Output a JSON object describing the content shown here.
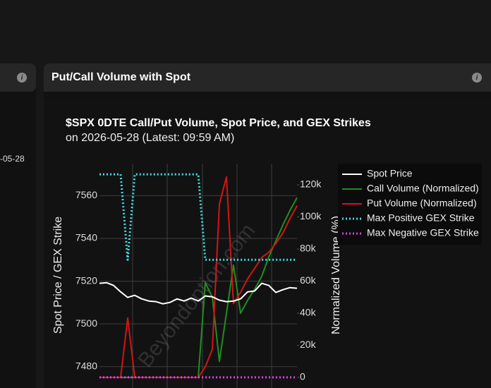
{
  "left_panel": {
    "date_fragment": "-05-28"
  },
  "panel": {
    "title": "Put/Call Volume with Spot"
  },
  "chart_data": {
    "type": "line",
    "title": "$SPX 0DTE Call/Put Volume, Spot Price, and GEX Strikes",
    "subtitle": "on 2026-05-28 (Latest: 09:59 AM)",
    "watermark": "Beyondoption.com",
    "y_label": "Spot Price / GEX Strike",
    "y2_label": "Normalized Volume (%)",
    "x": [
      0,
      1,
      2,
      3,
      4,
      5,
      6,
      7,
      8,
      9,
      10,
      11,
      12,
      13,
      14,
      15,
      16,
      17,
      18,
      19,
      20,
      21,
      22,
      23,
      24,
      25,
      26,
      27,
      28
    ],
    "xlim": [
      0,
      28
    ],
    "ylim": [
      7470,
      7575
    ],
    "yticks": [
      7480,
      7500,
      7520,
      7540,
      7560
    ],
    "y2lim": [
      -6600,
      133200
    ],
    "y2ticks": [
      {
        "value": 0,
        "label": "0"
      },
      {
        "value": 20000,
        "label": "20k"
      },
      {
        "value": 40000,
        "label": "40k"
      },
      {
        "value": 60000,
        "label": "60k"
      },
      {
        "value": 80000,
        "label": "80k"
      },
      {
        "value": 100000,
        "label": "100k"
      },
      {
        "value": 120000,
        "label": "120k"
      }
    ],
    "grid": true,
    "legend": "upper right",
    "series": [
      {
        "name": "Spot Price",
        "color": "#ffffff",
        "style": "solid",
        "values": [
          7519.0,
          7519.3,
          7518.0,
          7515.0,
          7512.4,
          7513.4,
          7511.7,
          7510.7,
          7510.4,
          7509.4,
          7510.1,
          7511.7,
          7510.7,
          7512.1,
          7510.7,
          7513.1,
          7512.7,
          7511.1,
          7510.4,
          7510.7,
          7511.7,
          7515.0,
          7515.4,
          7519.0,
          7518.0,
          7514.7,
          7516.0,
          7517.0,
          7516.7
        ]
      },
      {
        "name": "Call Volume (Normalized)",
        "color": "#1f8f1f",
        "style": "solid",
        "axis": "y2",
        "values": [
          0,
          0,
          0,
          0,
          0,
          0,
          0,
          0,
          0,
          0,
          0,
          0,
          0,
          0,
          0,
          59000,
          50000,
          10000,
          40000,
          70000,
          40000,
          48000,
          55000,
          63000,
          75000,
          85000,
          95000,
          104000,
          112000
        ]
      },
      {
        "name": "Put Volume (Normalized)",
        "color": "#d41414",
        "style": "solid",
        "axis": "y2",
        "values": [
          0,
          0,
          0,
          0,
          37000,
          0,
          0,
          0,
          0,
          0,
          0,
          0,
          0,
          0,
          0,
          6600,
          17600,
          108000,
          125000,
          46000,
          53000,
          61500,
          68000,
          74700,
          78000,
          83500,
          90000,
          99000,
          107000
        ]
      },
      {
        "name": "Max Positive GEX Strike",
        "color": "#3fe0e6",
        "style": "dotted",
        "values": [
          7570,
          7570,
          7570,
          7570,
          7530,
          7570,
          7570,
          7570,
          7570,
          7570,
          7570,
          7570,
          7570,
          7570,
          7570,
          7530,
          7530,
          7530,
          7530,
          7530,
          7530,
          7530,
          7530,
          7530,
          7530,
          7530,
          7530,
          7530,
          7530
        ]
      },
      {
        "name": "Max Negative GEX Strike",
        "color": "#e040e6",
        "style": "dotted",
        "values": [
          7475,
          7475,
          7475,
          7475,
          7475,
          7475,
          7475,
          7475,
          7475,
          7475,
          7475,
          7475,
          7475,
          7475,
          7475,
          7475,
          7475,
          7475,
          7475,
          7475,
          7475,
          7475,
          7475,
          7475,
          7475,
          7475,
          7475,
          7475,
          7475
        ]
      }
    ]
  }
}
